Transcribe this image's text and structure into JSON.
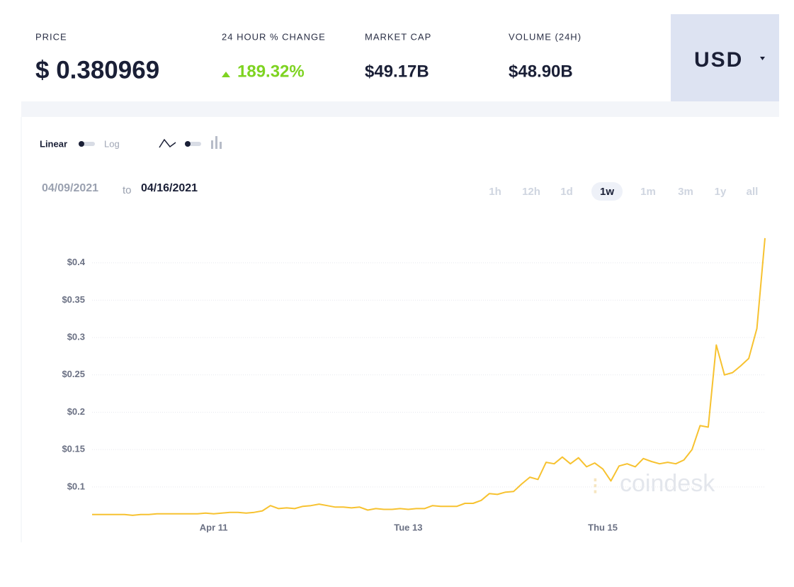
{
  "header": {
    "stats": [
      {
        "label": "PRICE",
        "value": "$ 0.380969"
      },
      {
        "label": "24 HOUR % CHANGE",
        "value": "189.32%"
      },
      {
        "label": "MARKET CAP",
        "value": "$49.17B"
      },
      {
        "label": "VOLUME (24H)",
        "value": "$48.90B"
      }
    ],
    "currency": "USD"
  },
  "controls": {
    "scale_options": [
      "Linear",
      "Log"
    ],
    "date_from": "04/09/2021",
    "date_separator": "to",
    "date_to": "04/16/2021",
    "ranges": [
      "1h",
      "12h",
      "1d",
      "1w",
      "1m",
      "3m",
      "1y",
      "all"
    ],
    "active_range": 3
  },
  "watermark": "coindesk",
  "chart_data": {
    "type": "line",
    "color": "#f7c230",
    "categories": [
      null,
      null,
      null,
      null,
      null,
      null,
      null,
      null,
      null,
      null,
      null,
      null,
      null,
      null,
      null,
      "Apr 11",
      null,
      null,
      null,
      null,
      null,
      null,
      null,
      null,
      null,
      null,
      null,
      null,
      null,
      null,
      null,
      null,
      null,
      null,
      null,
      null,
      null,
      null,
      null,
      "Tue 13",
      null,
      null,
      null,
      null,
      null,
      null,
      null,
      null,
      null,
      null,
      null,
      null,
      null,
      null,
      null,
      null,
      null,
      null,
      null,
      null,
      null,
      null,
      null,
      "Thu 15",
      null,
      null,
      null,
      null,
      null,
      null,
      null,
      null,
      null,
      null,
      null,
      null,
      null,
      null,
      null,
      null,
      null,
      null,
      null,
      null
    ],
    "values": [
      0.063,
      0.063,
      0.063,
      0.063,
      0.063,
      0.062,
      0.063,
      0.063,
      0.064,
      0.064,
      0.064,
      0.064,
      0.064,
      0.064,
      0.065,
      0.064,
      0.065,
      0.066,
      0.066,
      0.065,
      0.066,
      0.068,
      0.075,
      0.071,
      0.072,
      0.071,
      0.074,
      0.075,
      0.077,
      0.075,
      0.073,
      0.073,
      0.072,
      0.073,
      0.069,
      0.071,
      0.07,
      0.07,
      0.071,
      0.07,
      0.071,
      0.071,
      0.075,
      0.074,
      0.074,
      0.074,
      0.078,
      0.078,
      0.082,
      0.091,
      0.09,
      0.093,
      0.094,
      0.104,
      0.113,
      0.11,
      0.133,
      0.131,
      0.14,
      0.131,
      0.139,
      0.127,
      0.132,
      0.124,
      0.108,
      0.128,
      0.131,
      0.127,
      0.138,
      0.134,
      0.131,
      0.133,
      0.131,
      0.136,
      0.15,
      0.182,
      0.18,
      0.29,
      0.25,
      0.253,
      0.262,
      0.272,
      0.312,
      0.433
    ],
    "ylim": [
      0.06,
      0.45
    ],
    "yticks": [
      {
        "value": 0.1,
        "label": "$0.1"
      },
      {
        "value": 0.15,
        "label": "$0.15"
      },
      {
        "value": 0.2,
        "label": "$0.2"
      },
      {
        "value": 0.25,
        "label": "$0.25"
      },
      {
        "value": 0.3,
        "label": "$0.3"
      },
      {
        "value": 0.35,
        "label": "$0.35"
      },
      {
        "value": 0.4,
        "label": "$0.4"
      }
    ],
    "grid": true
  }
}
